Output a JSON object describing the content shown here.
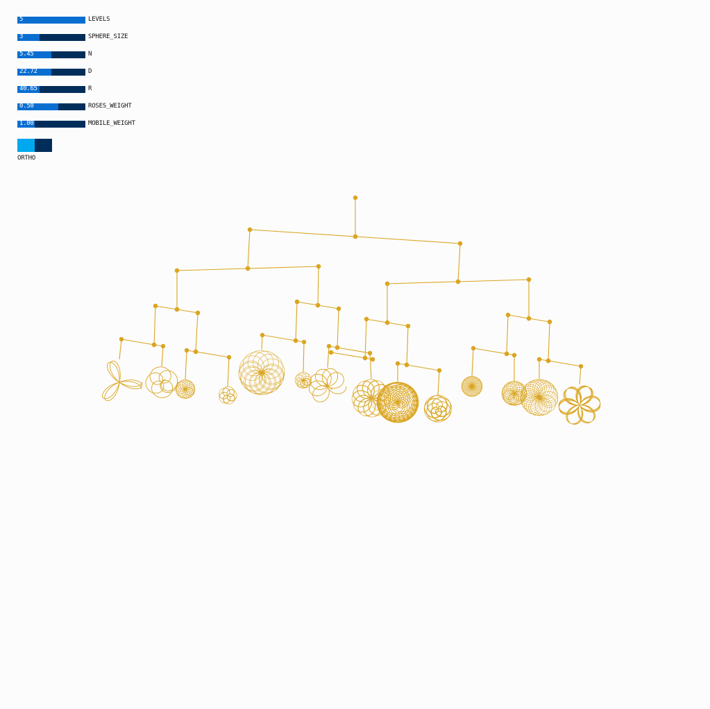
{
  "controls": {
    "sliders": [
      {
        "label": "LEVELS",
        "value": "5",
        "fraction": 1.0
      },
      {
        "label": "SPHERE_SIZE",
        "value": "3",
        "fraction": 0.33
      },
      {
        "label": "N",
        "value": "5.45",
        "fraction": 0.5
      },
      {
        "label": "D",
        "value": "22.72",
        "fraction": 0.5
      },
      {
        "label": "R",
        "value": "40.65",
        "fraction": 0.33
      },
      {
        "label": "ROSES_WEIGHT",
        "value": "0.50",
        "fraction": 0.6
      },
      {
        "label": "MOBILE_WEIGHT",
        "value": "1.00",
        "fraction": 0.25
      }
    ],
    "ortho": {
      "label": "ORTHO",
      "on": true
    }
  },
  "colors": {
    "background": "#fcfcfc",
    "mobile": "#daa520",
    "slider_track": "#002d5a",
    "slider_fill": "#0a6ed1",
    "toggle_on": "#00a8f0"
  }
}
